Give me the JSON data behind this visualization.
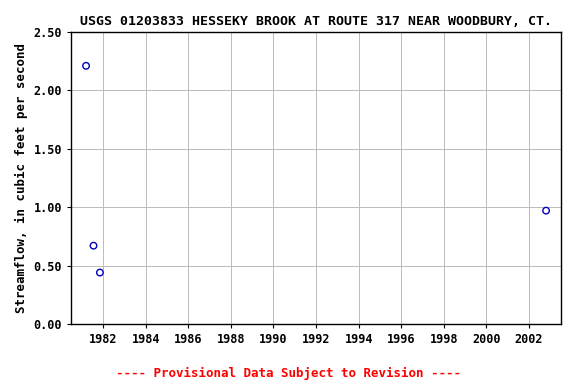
{
  "title": "USGS 01203833 HESSEKY BROOK AT ROUTE 317 NEAR WOODBURY, CT.",
  "ylabel": "Streamflow, in cubic feet per second",
  "xlim": [
    1980.5,
    2003.5
  ],
  "ylim": [
    0.0,
    2.5
  ],
  "xticks": [
    1982,
    1984,
    1986,
    1988,
    1990,
    1992,
    1994,
    1996,
    1998,
    2000,
    2002
  ],
  "yticks": [
    0.0,
    0.5,
    1.0,
    1.5,
    2.0,
    2.5
  ],
  "data_x": [
    1981.2,
    1981.55,
    1981.85,
    2002.8
  ],
  "data_y": [
    2.21,
    0.67,
    0.44,
    0.97
  ],
  "point_color": "#0000bb",
  "point_size": 22,
  "point_linewidth": 1.0,
  "grid_color": "#bbbbbb",
  "background_color": "#ffffff",
  "title_fontsize": 9.5,
  "axis_label_fontsize": 9,
  "tick_fontsize": 8.5,
  "provisional_text": "---- Provisional Data Subject to Revision ----",
  "provisional_color": "#ff0000",
  "provisional_fontsize": 9
}
